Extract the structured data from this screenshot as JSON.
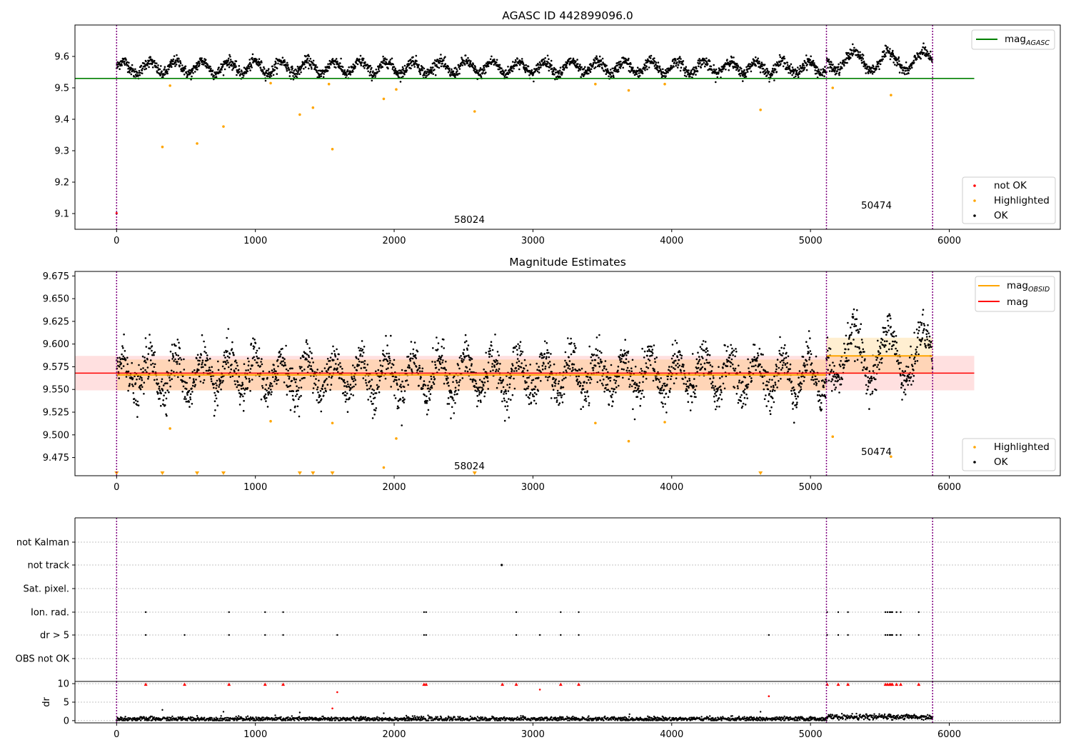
{
  "chart_data": [
    {
      "type": "scatter",
      "title": "AGASC ID 442899096.0",
      "xlim": [
        -300,
        6800
      ],
      "ylim": [
        9.05,
        9.7
      ],
      "xticks": [
        0,
        1000,
        2000,
        3000,
        4000,
        5000,
        6000
      ],
      "yticks": [
        9.1,
        9.2,
        9.3,
        9.4,
        9.5,
        9.6
      ],
      "obs_boundaries": [
        0,
        5115,
        5880
      ],
      "line": {
        "name": "mag_AGASC",
        "label_main": "mag",
        "label_sub": "AGASC",
        "y": 9.53,
        "x": [
          -300,
          6180
        ],
        "color": "#008000"
      },
      "ok_trend": {
        "segments": [
          {
            "x": [
              0,
              5115
            ],
            "base": 9.565,
            "amp": 0.02,
            "period": 190
          },
          {
            "x": [
              5115,
              5880
            ],
            "base": 9.585,
            "amp": 0.03,
            "period": 250
          }
        ]
      },
      "highlighted": {
        "x": [
          330,
          385,
          580,
          770,
          1110,
          1320,
          1415,
          1530,
          1555,
          1925,
          2015,
          2580,
          3450,
          3690,
          3950,
          4640,
          5160,
          5580
        ],
        "y": [
          9.312,
          9.507,
          9.323,
          9.377,
          9.515,
          9.415,
          9.437,
          9.512,
          9.305,
          9.465,
          9.495,
          9.425,
          9.512,
          9.492,
          9.512,
          9.43,
          9.5,
          9.477
        ]
      },
      "not_ok": {
        "x": [
          0
        ],
        "y": [
          9.101
        ]
      },
      "legend_upper": [
        "mag_AGASC"
      ],
      "legend_lower": [
        "not OK",
        "Highlighted",
        "OK"
      ],
      "annotations": [
        {
          "text": "58024",
          "x": 2450,
          "y": 9.065
        },
        {
          "text": "50474",
          "x": 5380,
          "y": 9.112
        }
      ],
      "legend_labels": {
        "not_ok": "not OK",
        "highlighted": "Highlighted",
        "ok": "OK"
      },
      "colors": {
        "ok": "#000000",
        "highlighted": "#ffa500",
        "not_ok": "#ff0000",
        "boundary": "#800080"
      }
    },
    {
      "type": "scatter",
      "title": "Magnitude Estimates",
      "xlim": [
        -300,
        6800
      ],
      "ylim": [
        9.455,
        9.68
      ],
      "xticks": [
        0,
        1000,
        2000,
        3000,
        4000,
        5000,
        6000
      ],
      "yticks": [
        9.475,
        9.5,
        9.525,
        9.55,
        9.575,
        9.6,
        9.625,
        9.65,
        9.675
      ],
      "obs_boundaries": [
        0,
        5115,
        5880
      ],
      "mag_line": {
        "y": 9.568,
        "band": [
          9.549,
          9.587
        ],
        "x": [
          -300,
          6180
        ],
        "color": "#ff0000"
      },
      "mag_obsid": [
        {
          "x": [
            0,
            5115
          ],
          "y": 9.566,
          "band": [
            9.549,
            9.583
          ]
        },
        {
          "x": [
            5115,
            5880
          ],
          "y": 9.587,
          "band": [
            9.567,
            9.607
          ]
        }
      ],
      "ok_trend": {
        "segments": [
          {
            "x": [
              0,
              5115
            ],
            "base": 9.566,
            "amp": 0.02,
            "period": 190
          },
          {
            "x": [
              5115,
              5880
            ],
            "base": 9.587,
            "amp": 0.028,
            "period": 250
          }
        ]
      },
      "highlighted": {
        "x": [
          385,
          1110,
          1555,
          1925,
          2015,
          3450,
          3690,
          3950,
          5160,
          5580
        ],
        "y": [
          9.507,
          9.515,
          9.513,
          9.464,
          9.496,
          9.513,
          9.493,
          9.514,
          9.498,
          9.476
        ]
      },
      "below_markers": {
        "x": [
          0,
          330,
          580,
          770,
          1320,
          1415,
          1555,
          2580,
          4640
        ]
      },
      "legend_upper": [
        {
          "name": "mag_OBSID",
          "label_main": "mag",
          "label_sub": "OBSID",
          "color": "#ffa500"
        },
        {
          "name": "mag",
          "label_main": "mag",
          "label_sub": "",
          "color": "#ff0000"
        }
      ],
      "legend_lower": [
        "Highlighted",
        "OK"
      ],
      "annotations": [
        {
          "text": "58024",
          "x": 2450,
          "y": 9.4605
        },
        {
          "text": "50474",
          "x": 5380,
          "y": 9.479
        }
      ],
      "legend_labels": {
        "highlighted": "Highlighted",
        "ok": "OK"
      }
    },
    {
      "type": "scatter",
      "title": "",
      "xlim": [
        -300,
        6800
      ],
      "categories": [
        "not Kalman",
        "not track",
        "Sat. pixel.",
        "Ion. rad.",
        "dr > 5",
        "OBS not OK"
      ],
      "obs_boundaries": [
        0,
        5115,
        5880
      ],
      "flags": {
        "not Kalman": [],
        "not track": [
          2775
        ],
        "Sat. pixel.": [],
        "Ion. rad.": [
          210,
          810,
          1070,
          1200,
          2215,
          2230,
          2880,
          3200,
          3330,
          5120,
          5200,
          5270,
          5540,
          5555,
          5570,
          5580,
          5590,
          5620,
          5650,
          5780
        ],
        "dr > 5": [
          210,
          490,
          810,
          1070,
          1200,
          1590,
          2215,
          2230,
          2880,
          3050,
          3200,
          3330,
          4700,
          5120,
          5200,
          5270,
          5540,
          5555,
          5570,
          5580,
          5590,
          5620,
          5650,
          5780
        ],
        "OBS not OK": []
      }
    },
    {
      "type": "scatter",
      "title": "",
      "ylabel": "dr",
      "xlim": [
        -300,
        6800
      ],
      "ylim": [
        -0.6,
        10.6
      ],
      "yticks": [
        0,
        5,
        10
      ],
      "xticks": [
        0,
        1000,
        2000,
        3000,
        4000,
        5000,
        6000
      ],
      "obs_boundaries": [
        0,
        5115,
        5880
      ],
      "ok_baseline": {
        "segments": [
          {
            "x": [
              0,
              5115
            ],
            "level": 0.45,
            "spread": 0.3
          },
          {
            "x": [
              5115,
              5880
            ],
            "level": 1.0,
            "spread": 0.35
          }
        ]
      },
      "ok_outliers": {
        "x": [
          330,
          580,
          770,
          1320,
          1925,
          4640
        ],
        "y": [
          2.9,
          1.3,
          2.4,
          2.2,
          2.0,
          2.4
        ]
      },
      "flagged": {
        "x": [
          210,
          490,
          810,
          1070,
          1200,
          1590,
          1555,
          2215,
          2230,
          2780,
          2880,
          3050,
          3200,
          3330,
          4700,
          5120,
          5200,
          5270,
          5540,
          5555,
          5570,
          5580,
          5590,
          5620,
          5650,
          5780
        ],
        "y": [
          9.8,
          9.8,
          9.8,
          9.8,
          9.8,
          7.7,
          3.3,
          9.8,
          9.8,
          9.8,
          9.8,
          8.4,
          9.8,
          9.8,
          6.6,
          9.8,
          9.8,
          9.8,
          9.8,
          9.8,
          9.8,
          9.8,
          9.8,
          9.8,
          9.8,
          9.8
        ]
      }
    }
  ]
}
